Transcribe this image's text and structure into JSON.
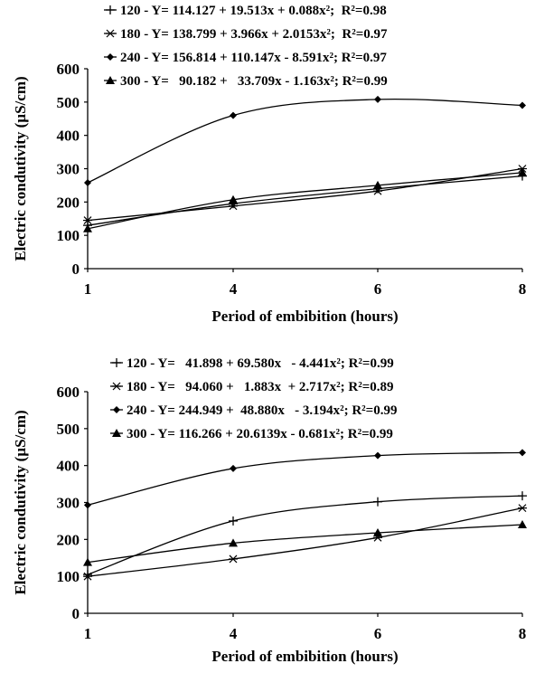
{
  "chart_data": [
    {
      "type": "line",
      "xlabel": "Period of embibition (hours)",
      "ylabel": "Electric condutivity (µS/cm)",
      "x": [
        1,
        4,
        6,
        8
      ],
      "xticks": [
        "1",
        "4",
        "6",
        "8"
      ],
      "ylim": [
        0,
        600
      ],
      "yticks": [
        "0",
        "100",
        "200",
        "300",
        "400",
        "500",
        "600"
      ],
      "grid": false,
      "legend_position": "top",
      "series": [
        {
          "name": "120",
          "marker": "plus",
          "equation": "120 - Y= 114.127 + 19.513x + 0.088x²;  R²=0.98",
          "values": [
            130,
            195,
            240,
            278
          ]
        },
        {
          "name": "180",
          "marker": "star",
          "equation": "180 - Y= 138.799 + 3.966x + 2.0153x²;  R²=0.97",
          "values": [
            145,
            188,
            233,
            300
          ]
        },
        {
          "name": "240",
          "marker": "diamond",
          "equation": "240 - Y= 156.814 + 110.147x - 8.591x²; R²=0.97",
          "values": [
            258,
            460,
            508,
            490
          ]
        },
        {
          "name": "300",
          "marker": "triangle",
          "equation": "300 - Y=   90.182 +   33.709x - 1.163x²; R²=0.99",
          "values": [
            120,
            207,
            250,
            288
          ]
        }
      ]
    },
    {
      "type": "line",
      "xlabel": "Period of embibition (hours)",
      "ylabel": "Electric condutivity (µS/cm)",
      "x": [
        1,
        4,
        6,
        8
      ],
      "xticks": [
        "1",
        "4",
        "6",
        "8"
      ],
      "ylim": [
        0,
        600
      ],
      "yticks": [
        "0",
        "100",
        "200",
        "300",
        "400",
        "500",
        "600"
      ],
      "grid": false,
      "legend_position": "top",
      "series": [
        {
          "name": "120",
          "marker": "plus",
          "equation": "120 - Y=   41.898 + 69.580x   - 4.441x²; R²=0.99",
          "values": [
            105,
            250,
            302,
            318
          ]
        },
        {
          "name": "180",
          "marker": "star",
          "equation": "180 - Y=   94.060 +   1.883x  + 2.717x²; R²=0.89",
          "values": [
            100,
            147,
            205,
            285
          ]
        },
        {
          "name": "240",
          "marker": "diamond",
          "equation": "240 - Y= 244.949 +  48.880x   - 3.194x²; R²=0.99",
          "values": [
            293,
            392,
            427,
            435
          ]
        },
        {
          "name": "300",
          "marker": "triangle",
          "equation": "300 - Y= 116.266 + 20.6139x - 0.681x²; R²=0.99",
          "values": [
            138,
            190,
            218,
            240
          ]
        }
      ]
    }
  ]
}
